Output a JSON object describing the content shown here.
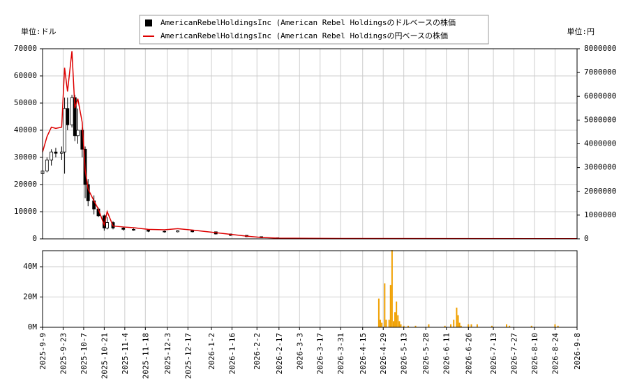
{
  "chart_data": [
    {
      "type": "candlestick",
      "ylabel": "単位:ドル",
      "y2label": "単位:円",
      "ylim": [
        0,
        70000
      ],
      "yticks": [
        0,
        10000,
        20000,
        30000,
        40000,
        50000,
        60000,
        70000
      ],
      "y2lim": [
        0,
        8000000
      ],
      "y2ticks": [
        0,
        1000000,
        2000000,
        3000000,
        4000000,
        5000000,
        6000000,
        7000000,
        8000000
      ],
      "grid": true,
      "series": [
        {
          "name": "AmericanRebelHoldingsInc (American Rebel Holdingsのドルベースの株価",
          "color": "#000000",
          "x": [
            "2025-9-9",
            "2025-9-12",
            "2025-9-15",
            "2025-9-18",
            "2025-9-22",
            "2025-9-24",
            "2025-9-26",
            "2025-9-29",
            "2025-10-1",
            "2025-10-3",
            "2025-10-6",
            "2025-10-8",
            "2025-10-10",
            "2025-10-14",
            "2025-10-17",
            "2025-10-21",
            "2025-10-23",
            "2025-10-27",
            "2025-11-3",
            "2025-11-10",
            "2025-11-20",
            "2025-12-1",
            "2025-12-10",
            "2025-12-20",
            "2026-1-5",
            "2026-1-15",
            "2026-1-26",
            "2026-2-5",
            "2026-2-16"
          ],
          "open": [
            24000,
            25000,
            29000,
            32000,
            31500,
            32000,
            48000,
            42000,
            52000,
            38000,
            40000,
            33000,
            20000,
            14000,
            11000,
            8500,
            4000,
            6000,
            4000,
            3500,
            3200,
            2800,
            2600,
            3000,
            2600,
            1800,
            1300,
            800,
            400
          ],
          "high": [
            26000,
            30000,
            33000,
            33500,
            34000,
            52000,
            52000,
            53000,
            53000,
            48000,
            41000,
            34000,
            22000,
            16000,
            11500,
            9000,
            8000,
            6500,
            4500,
            3800,
            3500,
            3000,
            3200,
            3100,
            2700,
            1900,
            1400,
            850,
            420
          ],
          "low": [
            23000,
            24500,
            27000,
            30000,
            29000,
            24000,
            40000,
            41000,
            36000,
            35000,
            30000,
            15000,
            12000,
            9000,
            8000,
            3000,
            3500,
            3500,
            3000,
            3000,
            2500,
            2300,
            2400,
            2400,
            1600,
            1100,
            700,
            300,
            150
          ],
          "close": [
            25000,
            29000,
            32000,
            31500,
            32000,
            48000,
            42000,
            52000,
            38000,
            40000,
            33000,
            20000,
            14000,
            11000,
            8500,
            4000,
            6000,
            4000,
            3500,
            3200,
            2800,
            2600,
            3000,
            2600,
            1800,
            1300,
            800,
            400,
            200
          ]
        },
        {
          "name": "AmericanRebelHoldingsInc (American Rebel Holdingsの円ベースの株価",
          "color": "#dd0000",
          "axis": "y2",
          "x": [
            "2025-9-9",
            "2025-9-12",
            "2025-9-15",
            "2025-9-18",
            "2025-9-22",
            "2025-9-24",
            "2025-9-26",
            "2025-9-29",
            "2025-10-1",
            "2025-10-3",
            "2025-10-6",
            "2025-10-8",
            "2025-10-10",
            "2025-10-14",
            "2025-10-17",
            "2025-10-21",
            "2025-10-23",
            "2025-10-27",
            "2025-11-3",
            "2025-11-10",
            "2025-11-20",
            "2025-12-1",
            "2025-12-10",
            "2025-12-20",
            "2026-1-5",
            "2026-1-15",
            "2026-1-26",
            "2026-2-5",
            "2026-2-16",
            "2026-4-1",
            "2026-9-8"
          ],
          "values": [
            3650000,
            4300000,
            4700000,
            4650000,
            4700000,
            7200000,
            6200000,
            7900000,
            5500000,
            5900000,
            4900000,
            2900000,
            2100000,
            1600000,
            1250000,
            580000,
            1150000,
            540000,
            500000,
            470000,
            400000,
            380000,
            430000,
            370000,
            260000,
            190000,
            115000,
            58000,
            29000,
            15000,
            7500
          ]
        }
      ]
    },
    {
      "type": "bar",
      "color": "#f0a000",
      "ylim": [
        0,
        50600000
      ],
      "yticks": [
        {
          "value": 0,
          "label": "0M"
        },
        {
          "value": 20000000,
          "label": "20M"
        },
        {
          "value": 40000000,
          "label": "40M"
        }
      ],
      "xlim": [
        "2025-9-9",
        "2026-9-8"
      ],
      "xticks": [
        "2025-9-9",
        "2025-9-23",
        "2025-10-7",
        "2025-10-21",
        "2025-11-4",
        "2025-11-18",
        "2025-12-3",
        "2025-12-17",
        "2026-1-2",
        "2026-1-16",
        "2026-2-2",
        "2026-2-17",
        "2026-3-3",
        "2026-3-17",
        "2026-3-31",
        "2026-4-15",
        "2026-4-29",
        "2026-5-13",
        "2026-5-28",
        "2026-6-11",
        "2026-6-26",
        "2026-7-13",
        "2026-7-27",
        "2026-8-10",
        "2026-8-24",
        "2026-9-8"
      ],
      "x": [
        "2026-4-26",
        "2026-4-27",
        "2026-4-28",
        "2026-4-30",
        "2026-5-1",
        "2026-5-3",
        "2026-5-4",
        "2026-5-5",
        "2026-5-6",
        "2026-5-7",
        "2026-5-8",
        "2026-5-9",
        "2026-5-10",
        "2026-5-11",
        "2026-5-13",
        "2026-5-16",
        "2026-5-21",
        "2026-5-30",
        "2026-6-10",
        "2026-6-14",
        "2026-6-16",
        "2026-6-18",
        "2026-6-19",
        "2026-6-20",
        "2026-6-21",
        "2026-6-26",
        "2026-6-28",
        "2026-7-2",
        "2026-7-12",
        "2026-7-22",
        "2026-7-24",
        "2026-8-8",
        "2026-8-24",
        "2026-8-26"
      ],
      "values": [
        19000000,
        5000000,
        3000000,
        29000000,
        5000000,
        5000000,
        28000000,
        51000000,
        4000000,
        10000000,
        17000000,
        8000000,
        4000000,
        2000000,
        1000000,
        1000000,
        1000000,
        2000000,
        1000000,
        2000000,
        5000000,
        13000000,
        8000000,
        3000000,
        1000000,
        2000000,
        2000000,
        2000000,
        1000000,
        2000000,
        1000000,
        1000000,
        2000000,
        1000000
      ]
    }
  ]
}
